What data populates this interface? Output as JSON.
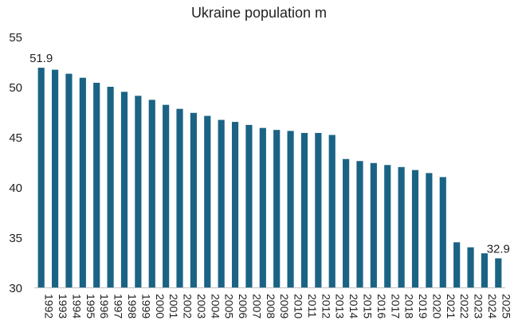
{
  "chart_data": {
    "type": "bar",
    "title": "Ukraine population m",
    "xlabel": "",
    "ylabel": "",
    "ylim": [
      30,
      55
    ],
    "yticks": [
      "30",
      "35",
      "40",
      "45",
      "50",
      "55"
    ],
    "grid": false,
    "legend": "none",
    "bar_color": "#1b6384",
    "categories": [
      "1992",
      "1993",
      "1994",
      "1995",
      "1996",
      "1997",
      "1998",
      "1999",
      "2000",
      "2001",
      "2002",
      "2003",
      "2004",
      "2005",
      "2006",
      "2007",
      "2008",
      "2009",
      "2010",
      "2011",
      "2012",
      "2013",
      "2014",
      "2015",
      "2016",
      "2017",
      "2018",
      "2019",
      "2020",
      "2021",
      "2022",
      "2023",
      "2024",
      "2025"
    ],
    "values": [
      51.9,
      51.7,
      51.3,
      50.9,
      50.4,
      50.0,
      49.5,
      49.1,
      48.7,
      48.2,
      47.8,
      47.4,
      47.1,
      46.7,
      46.5,
      46.2,
      45.9,
      45.7,
      45.6,
      45.4,
      45.4,
      45.2,
      42.8,
      42.6,
      42.4,
      42.2,
      42.0,
      41.7,
      41.4,
      41.0,
      34.5,
      34.0,
      33.4,
      32.9
    ],
    "data_labels": [
      {
        "index": 0,
        "text": "51.9"
      },
      {
        "index": 33,
        "text": "32.9"
      }
    ]
  }
}
